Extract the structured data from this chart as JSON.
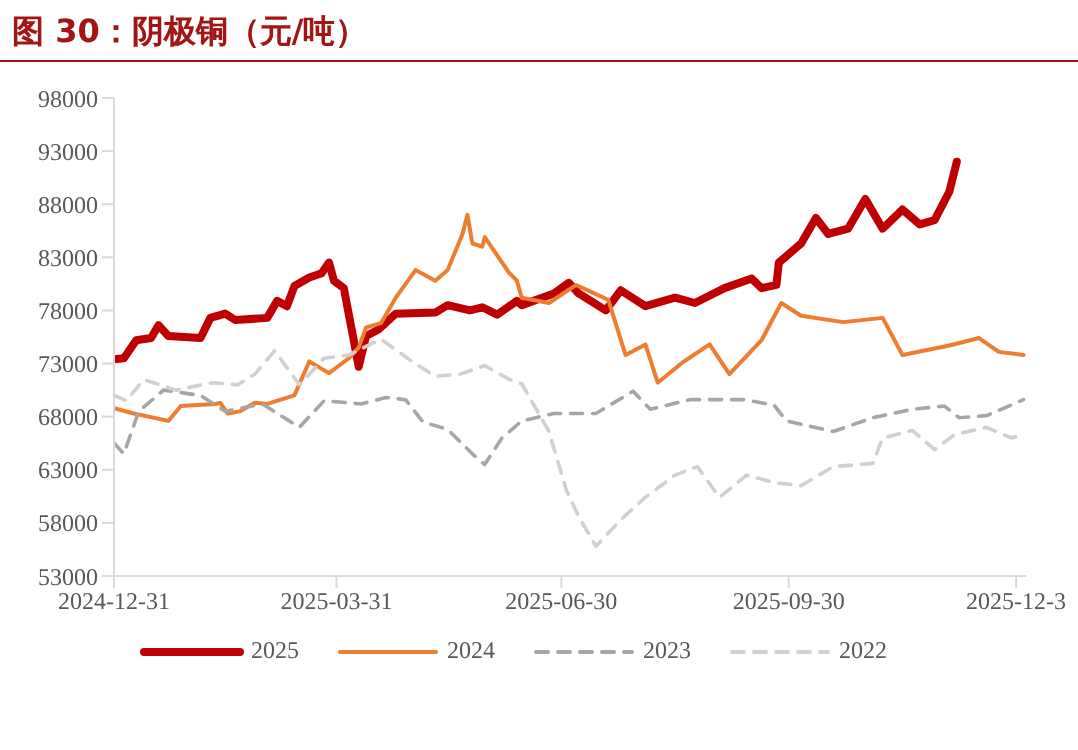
{
  "chart_data": {
    "type": "line",
    "title": "图 30：阴极铜（元/吨）",
    "xlim": [
      "2024-12-31",
      "2026-01-04"
    ],
    "xticks": [
      "2024-12-31",
      "2025-03-31",
      "2025-06-30",
      "2025-09-30",
      {
        "value": "2025-12-31",
        "label": "2025-12-3"
      }
    ],
    "ylim": [
      53000,
      98000
    ],
    "yticks": [
      53000,
      58000,
      63000,
      68000,
      73000,
      78000,
      83000,
      88000,
      93000,
      98000
    ],
    "grid": false,
    "legend": "bottom",
    "marker": "none",
    "series": [
      {
        "name": "2025",
        "color": "#c00000",
        "line_style": "solid",
        "x": [
          "2024-12-31",
          "2025-01-04",
          "2025-01-09",
          "2025-01-15",
          "2025-01-18",
          "2025-01-22",
          "2025-02-04",
          "2025-02-08",
          "2025-02-14",
          "2025-02-18",
          "2025-03-03",
          "2025-03-07",
          "2025-03-11",
          "2025-03-14",
          "2025-03-20",
          "2025-03-25",
          "2025-03-28",
          "2025-03-30",
          "2025-04-03",
          "2025-04-07",
          "2025-04-09",
          "2025-04-12",
          "2025-04-17",
          "2025-04-24",
          "2025-05-10",
          "2025-05-15",
          "2025-05-24",
          "2025-05-29",
          "2025-06-04",
          "2025-06-12",
          "2025-06-14",
          "2025-06-27",
          "2025-07-03",
          "2025-07-07",
          "2025-07-18",
          "2025-07-24",
          "2025-08-03",
          "2025-08-15",
          "2025-08-23",
          "2025-09-04",
          "2025-09-15",
          "2025-09-19",
          "2025-09-25",
          "2025-09-26",
          "2025-10-05",
          "2025-10-11",
          "2025-10-16",
          "2025-10-24",
          "2025-10-31",
          "2025-11-07",
          "2025-11-15",
          "2025-11-22",
          "2025-11-28",
          "2025-12-04",
          "2025-12-07"
        ],
        "values": [
          73400,
          73500,
          75200,
          75400,
          76600,
          75600,
          75400,
          77300,
          77700,
          77100,
          77300,
          78900,
          78400,
          80300,
          81100,
          81500,
          82500,
          80800,
          80100,
          75200,
          72700,
          75600,
          76200,
          77700,
          77800,
          78500,
          78000,
          78300,
          77600,
          78900,
          78500,
          79600,
          80600,
          79600,
          78000,
          79900,
          78400,
          79200,
          78700,
          80100,
          81000,
          80100,
          80400,
          82500,
          84300,
          86700,
          85200,
          85700,
          88500,
          85700,
          87500,
          86100,
          86500,
          89200,
          92000
        ]
      },
      {
        "name": "2024",
        "color": "#ed7d31",
        "line_style": "solid",
        "x": [
          "2024-12-31",
          "2025-01-08",
          "2025-01-22",
          "2025-01-27",
          "2025-02-10",
          "2025-02-12",
          "2025-02-15",
          "2025-02-20",
          "2025-02-26",
          "2025-03-03",
          "2025-03-14",
          "2025-03-20",
          "2025-03-28",
          "2025-04-05",
          "2025-04-09",
          "2025-04-12",
          "2025-04-18",
          "2025-04-24",
          "2025-05-02",
          "2025-05-10",
          "2025-05-15",
          "2025-05-21",
          "2025-05-23",
          "2025-05-25",
          "2025-05-29",
          "2025-05-30",
          "2025-06-09",
          "2025-06-12",
          "2025-06-14",
          "2025-06-25",
          "2025-07-06",
          "2025-07-19",
          "2025-07-26",
          "2025-08-03",
          "2025-08-08",
          "2025-08-18",
          "2025-08-29",
          "2025-09-06",
          "2025-09-19",
          "2025-09-27",
          "2025-10-05",
          "2025-10-22",
          "2025-11-07",
          "2025-11-15",
          "2025-12-04",
          "2025-12-16",
          "2025-12-24",
          "2026-01-03"
        ],
        "values": [
          68800,
          68300,
          67600,
          69000,
          69200,
          69300,
          68300,
          68500,
          69300,
          69200,
          70000,
          73200,
          72100,
          73500,
          74500,
          76400,
          76800,
          79200,
          81800,
          80800,
          81800,
          85200,
          87000,
          84300,
          84000,
          84900,
          81500,
          80800,
          79200,
          78700,
          80400,
          79000,
          73800,
          74800,
          71200,
          73100,
          74800,
          72000,
          75200,
          78700,
          77500,
          76900,
          77300,
          73800,
          74700,
          75400,
          74100,
          73800
        ]
      },
      {
        "name": "2023",
        "color": "#a6a6a6",
        "line_style": "dashed",
        "x": [
          "2024-12-31",
          "2025-01-04",
          "2025-01-10",
          "2025-01-20",
          "2025-02-04",
          "2025-02-14",
          "2025-03-01",
          "2025-03-16",
          "2025-03-26",
          "2025-04-10",
          "2025-04-20",
          "2025-04-28",
          "2025-05-05",
          "2025-05-15",
          "2025-05-25",
          "2025-05-30",
          "2025-06-06",
          "2025-06-14",
          "2025-06-27",
          "2025-07-14",
          "2025-07-29",
          "2025-08-05",
          "2025-08-21",
          "2025-09-12",
          "2025-09-24",
          "2025-09-29",
          "2025-10-18",
          "2025-11-03",
          "2025-11-19",
          "2025-12-02",
          "2025-12-08",
          "2025-12-19",
          "2026-01-03"
        ],
        "values": [
          65500,
          64500,
          68500,
          70500,
          70000,
          68500,
          69200,
          67000,
          69500,
          69200,
          69800,
          69600,
          67500,
          66800,
          64500,
          63500,
          66000,
          67600,
          68300,
          68300,
          70400,
          68700,
          69600,
          69600,
          69100,
          67600,
          66600,
          67900,
          68700,
          69000,
          67900,
          68100,
          69600
        ]
      },
      {
        "name": "2022",
        "color": "#d0d0d0",
        "line_style": "dashed",
        "x": [
          "2024-12-31",
          "2025-01-05",
          "2025-01-12",
          "2025-01-25",
          "2025-02-09",
          "2025-02-19",
          "2025-02-26",
          "2025-03-06",
          "2025-03-16",
          "2025-03-26",
          "2025-04-05",
          "2025-04-18",
          "2025-04-30",
          "2025-05-10",
          "2025-05-20",
          "2025-05-30",
          "2025-06-09",
          "2025-06-14",
          "2025-06-25",
          "2025-07-02",
          "2025-07-07",
          "2025-07-14",
          "2025-07-24",
          "2025-08-03",
          "2025-08-15",
          "2025-08-24",
          "2025-09-02",
          "2025-09-13",
          "2025-09-24",
          "2025-10-05",
          "2025-10-18",
          "2025-11-03",
          "2025-11-07",
          "2025-11-19",
          "2025-11-28",
          "2025-12-06",
          "2025-12-19",
          "2025-12-29",
          "2026-01-03"
        ],
        "values": [
          70000,
          69500,
          71500,
          70500,
          71200,
          71000,
          72000,
          74200,
          71000,
          73500,
          73800,
          75300,
          73300,
          71800,
          72000,
          72800,
          71500,
          71100,
          66600,
          61100,
          58600,
          55800,
          58300,
          60400,
          62500,
          63300,
          60400,
          62500,
          61800,
          61500,
          63300,
          63600,
          66000,
          66700,
          64900,
          66300,
          67000,
          66000,
          66300
        ]
      }
    ]
  }
}
